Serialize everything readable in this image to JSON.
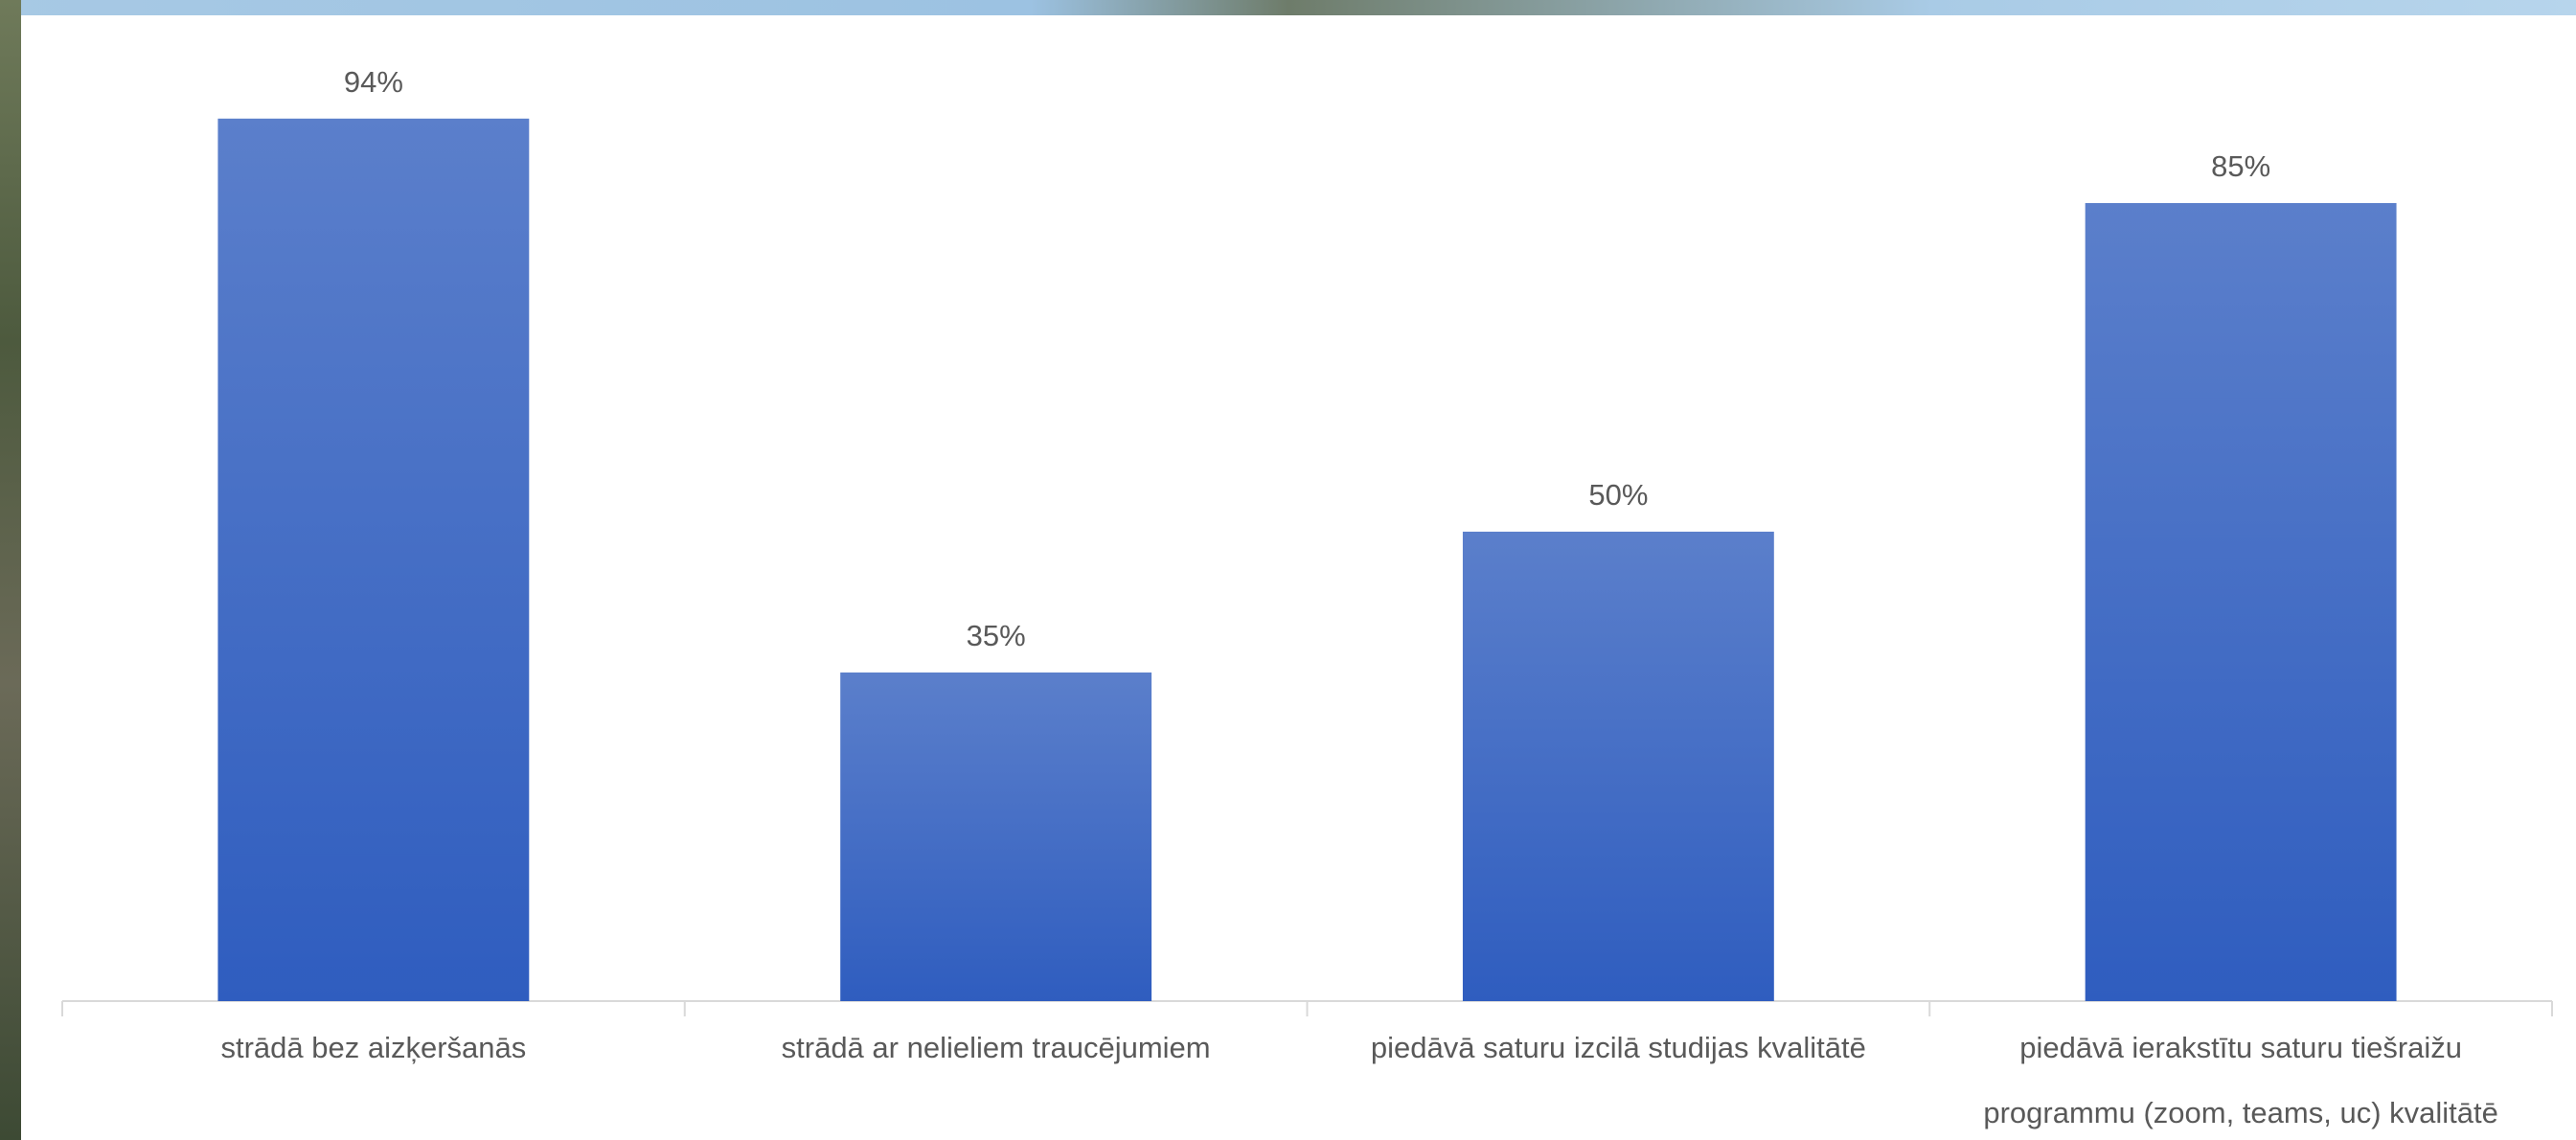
{
  "chart_data": {
    "type": "bar",
    "categories": [
      "strādā bez aizķeršanās",
      "strādā ar nelieliem traucējumiem",
      "piedāvā saturu izcilā studijas kvalitātē",
      [
        "piedāvā ierakstītu saturu tiešraižu",
        "programmu (zoom, teams, uc) kvalitātē"
      ]
    ],
    "values": [
      94,
      35,
      50,
      85
    ],
    "value_labels": [
      "94%",
      "35%",
      "50%",
      "85%"
    ],
    "color": "#4472c4"
  }
}
